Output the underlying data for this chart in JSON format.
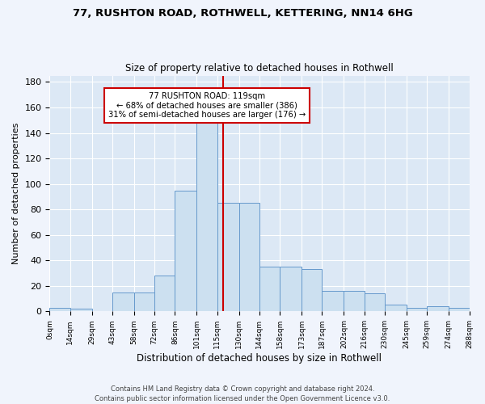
{
  "title_line1": "77, RUSHTON ROAD, ROTHWELL, KETTERING, NN14 6HG",
  "title_line2": "Size of property relative to detached houses in Rothwell",
  "xlabel": "Distribution of detached houses by size in Rothwell",
  "ylabel": "Number of detached properties",
  "bin_edges": [
    0,
    14,
    29,
    43,
    58,
    72,
    86,
    101,
    115,
    130,
    144,
    158,
    173,
    187,
    202,
    216,
    230,
    245,
    259,
    274,
    288
  ],
  "bar_heights": [
    3,
    2,
    0,
    15,
    15,
    28,
    95,
    149,
    85,
    85,
    35,
    35,
    33,
    16,
    16,
    14,
    5,
    3,
    4,
    3
  ],
  "bar_color": "#cce0f0",
  "bar_edge_color": "#6699cc",
  "vline_x": 119,
  "vline_color": "#cc0000",
  "annotation_text": "77 RUSHTON ROAD: 119sqm\n← 68% of detached houses are smaller (386)\n31% of semi-detached houses are larger (176) →",
  "annotation_box_color": "#ffffff",
  "annotation_box_edge": "#cc0000",
  "ylim": [
    0,
    185
  ],
  "bg_color": "#dce8f5",
  "fig_bg_color": "#f0f4fc",
  "footer_text": "Contains HM Land Registry data © Crown copyright and database right 2024.\nContains public sector information licensed under the Open Government Licence v3.0.",
  "tick_labels": [
    "0sqm",
    "14sqm",
    "29sqm",
    "43sqm",
    "58sqm",
    "72sqm",
    "86sqm",
    "101sqm",
    "115sqm",
    "130sqm",
    "144sqm",
    "158sqm",
    "173sqm",
    "187sqm",
    "202sqm",
    "216sqm",
    "230sqm",
    "245sqm",
    "259sqm",
    "274sqm",
    "288sqm"
  ],
  "yticks": [
    0,
    20,
    40,
    60,
    80,
    100,
    120,
    140,
    160,
    180
  ]
}
